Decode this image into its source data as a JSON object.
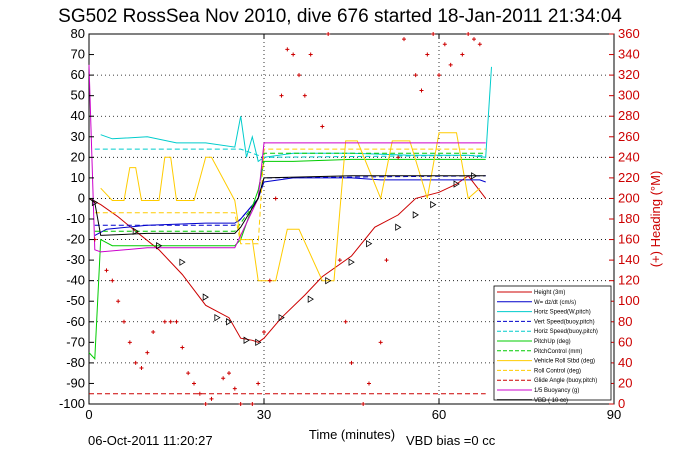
{
  "chart_data": {
    "type": "line",
    "title": "SG502 RossSea Nov 2010, dive 676 started 18-Jan-2011 21:34:04",
    "xlabel": "Time (minutes)",
    "ylabel_right": "(+) Heading (°M)",
    "footer_left": "06-Oct-2011 11:20:27",
    "footer_right": "VBD bias =0 cc",
    "xlim": [
      0,
      90
    ],
    "ylim_left": [
      -100,
      80
    ],
    "ylim_right": [
      0,
      360
    ],
    "x_ticks": [
      "0",
      "30",
      "60",
      "90"
    ],
    "y_ticks_left": [
      "80",
      "70",
      "60",
      "50",
      "40",
      "30",
      "20",
      "10",
      "0",
      "-10",
      "-20",
      "-30",
      "-40",
      "-50",
      "-60",
      "-70",
      "-80",
      "-90",
      "-100"
    ],
    "y_ticks_right": [
      "360",
      "340",
      "320",
      "300",
      "280",
      "260",
      "240",
      "220",
      "200",
      "180",
      "160",
      "140",
      "120",
      "100",
      "80",
      "60",
      "40",
      "20",
      "0"
    ],
    "grid": "dotted",
    "legend_position": "bottom-right",
    "series": [
      {
        "name": "Height (3m)",
        "color": "#cc0000",
        "style": "solid-marker",
        "x": [
          0,
          2,
          5,
          8,
          12,
          16,
          20,
          24,
          26,
          28,
          29,
          30,
          33,
          37,
          40,
          45,
          49,
          53,
          56,
          60,
          63,
          65,
          68
        ],
        "y": [
          0,
          -3,
          -9,
          -16,
          -25,
          -37,
          -52,
          -58,
          -68,
          -69,
          -70,
          -68,
          -58,
          -47,
          -38,
          -28,
          -14,
          -8,
          0,
          3,
          7,
          11,
          0
        ]
      },
      {
        "name": "W= dz/dt (cm/s)",
        "color": "#0000cc",
        "style": "solid",
        "x": [
          1,
          3,
          10,
          20,
          25,
          26,
          29,
          30,
          35,
          45,
          50,
          60,
          67,
          68
        ],
        "y": [
          -18,
          -15,
          -13,
          -12,
          -12,
          -10,
          0,
          8,
          10,
          10,
          9,
          9,
          9,
          8
        ]
      },
      {
        "name": "Horiz Speed(W,pitch)",
        "color": "#00cccc",
        "style": "solid",
        "x": [
          2,
          4,
          10,
          15,
          20,
          25,
          26,
          27,
          28,
          29,
          30,
          35,
          45,
          55,
          65,
          68,
          69
        ],
        "y": [
          31,
          29,
          30,
          27,
          27,
          25,
          40,
          20,
          30,
          18,
          20,
          22,
          22,
          21,
          21,
          20,
          64
        ]
      },
      {
        "name": "Vert Speed(buoy,pitch)",
        "color": "#0000cc",
        "style": "dashed",
        "x": [
          1,
          25,
          26,
          29,
          30,
          68
        ],
        "y": [
          -13,
          -13,
          -10,
          0,
          10,
          11
        ]
      },
      {
        "name": "Horiz Speed(buoy,pitch)",
        "color": "#00cccc",
        "style": "dashed",
        "x": [
          1,
          25,
          26,
          29,
          30,
          68
        ],
        "y": [
          24,
          24,
          24,
          21,
          20,
          21
        ]
      },
      {
        "name": "PitchUp (deg)",
        "color": "#00cc00",
        "style": "solid",
        "x": [
          0,
          1,
          2,
          4,
          25,
          26,
          29,
          30,
          35,
          45,
          60,
          68
        ],
        "y": [
          -75,
          -78,
          -20,
          -23,
          -23,
          -20,
          4,
          18,
          18,
          19,
          19,
          19
        ]
      },
      {
        "name": "PitchControl (mm)",
        "color": "#00cc00",
        "style": "dashed",
        "x": [
          1,
          25,
          26,
          29,
          30,
          68
        ],
        "y": [
          -16,
          -16,
          -12,
          0,
          22,
          22
        ]
      },
      {
        "name": "Vehicle Roll Stbd (deg)",
        "color": "#ffcc00",
        "style": "solid",
        "x": [
          2,
          4,
          6,
          7,
          8,
          9,
          12,
          13,
          14,
          15,
          18,
          20,
          21,
          25,
          26,
          28,
          29,
          32,
          34,
          36,
          40,
          42,
          44,
          46,
          50,
          52,
          55,
          58,
          60,
          63,
          65,
          67
        ],
        "y": [
          5,
          -1,
          -1,
          15,
          15,
          -1,
          -1,
          20,
          20,
          -1,
          -1,
          20,
          20,
          -1,
          -20,
          -20,
          -40,
          -40,
          -15,
          -15,
          -40,
          -40,
          28,
          28,
          0,
          28,
          28,
          0,
          32,
          32,
          0,
          5
        ]
      },
      {
        "name": "Roll Control (deg)",
        "color": "#ffcc00",
        "style": "dashed",
        "x": [
          1,
          25,
          26,
          29,
          30,
          68
        ],
        "y": [
          -7,
          -7,
          -22,
          -22,
          24,
          24
        ]
      },
      {
        "name": "Glide Angle (buoy,pitch)",
        "color": "#cc0000",
        "style": "dashed",
        "x": [
          0,
          68
        ],
        "y": [
          -95,
          -95
        ]
      },
      {
        "name": "1/5 Buoyancy (g)",
        "color": "#cc00cc",
        "style": "solid",
        "x": [
          0,
          1,
          2,
          10,
          25,
          26,
          29,
          30,
          45,
          60,
          68
        ],
        "y": [
          65,
          -25,
          -26,
          -24,
          -24,
          -18,
          0,
          27,
          27,
          27,
          27
        ]
      },
      {
        "name": "VBD ( 10 cc)",
        "color": "#000000",
        "style": "solid",
        "x": [
          0,
          1,
          2,
          10,
          25,
          26,
          29,
          30,
          45,
          60,
          68
        ],
        "y": [
          0,
          -2,
          -18,
          -17,
          -17,
          -14,
          0,
          10,
          11,
          11,
          11
        ]
      }
    ],
    "heading_series": {
      "name": "(+) Heading (°M)",
      "color": "#cc0000",
      "marker": "+",
      "x": [
        1,
        3,
        4,
        5,
        6,
        7,
        8,
        9,
        10,
        11,
        13,
        14,
        15,
        16,
        17,
        18,
        19,
        20,
        21,
        23,
        24,
        25,
        26,
        28,
        29,
        30,
        31,
        32,
        33,
        34,
        35,
        36,
        37,
        38,
        40,
        41,
        43,
        44,
        45,
        47,
        48,
        50,
        51,
        53,
        54,
        56,
        57,
        58,
        59,
        60,
        61,
        62,
        64,
        65,
        66,
        67
      ],
      "y": [
        160,
        130,
        120,
        100,
        80,
        60,
        40,
        35,
        50,
        70,
        80,
        80,
        80,
        55,
        30,
        20,
        10,
        0,
        5,
        25,
        30,
        15,
        0,
        0,
        20,
        70,
        120,
        200,
        300,
        345,
        340,
        320,
        300,
        340,
        270,
        360,
        140,
        80,
        40,
        0,
        20,
        60,
        140,
        240,
        355,
        320,
        305,
        340,
        360,
        320,
        350,
        330,
        340,
        360,
        355,
        350
      ]
    },
    "markers_triangle": {
      "x": [
        1,
        8,
        12,
        16,
        20,
        22,
        24,
        27,
        29,
        33,
        38,
        41,
        45,
        48,
        53,
        56,
        59,
        63,
        66
      ],
      "y": [
        -2,
        -16,
        -23,
        -31,
        -48,
        -58,
        -60,
        -69,
        -70,
        -58,
        -49,
        -40,
        -31,
        -22,
        -14,
        -8,
        -3,
        7,
        11
      ]
    }
  }
}
